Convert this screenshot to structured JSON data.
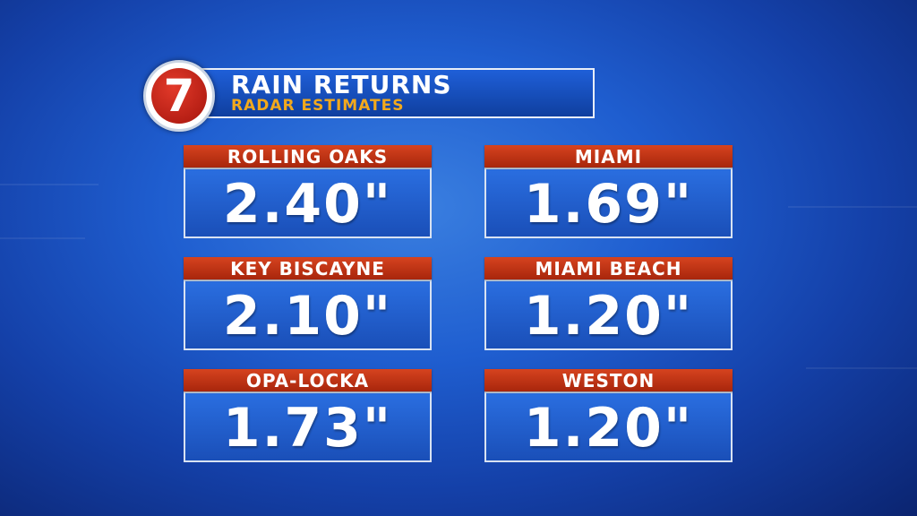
{
  "logo": "7",
  "header": {
    "title": "RAIN RETURNS",
    "subtitle": "RADAR ESTIMATES"
  },
  "cards": [
    {
      "location": "ROLLING OAKS",
      "amount": "2.40\""
    },
    {
      "location": "MIAMI",
      "amount": "1.69\""
    },
    {
      "location": "KEY BISCAYNE",
      "amount": "2.10\""
    },
    {
      "location": "MIAMI BEACH",
      "amount": "1.20\""
    },
    {
      "location": "OPA-LOCKA",
      "amount": "1.73\""
    },
    {
      "location": "WESTON",
      "amount": "1.20\""
    }
  ]
}
